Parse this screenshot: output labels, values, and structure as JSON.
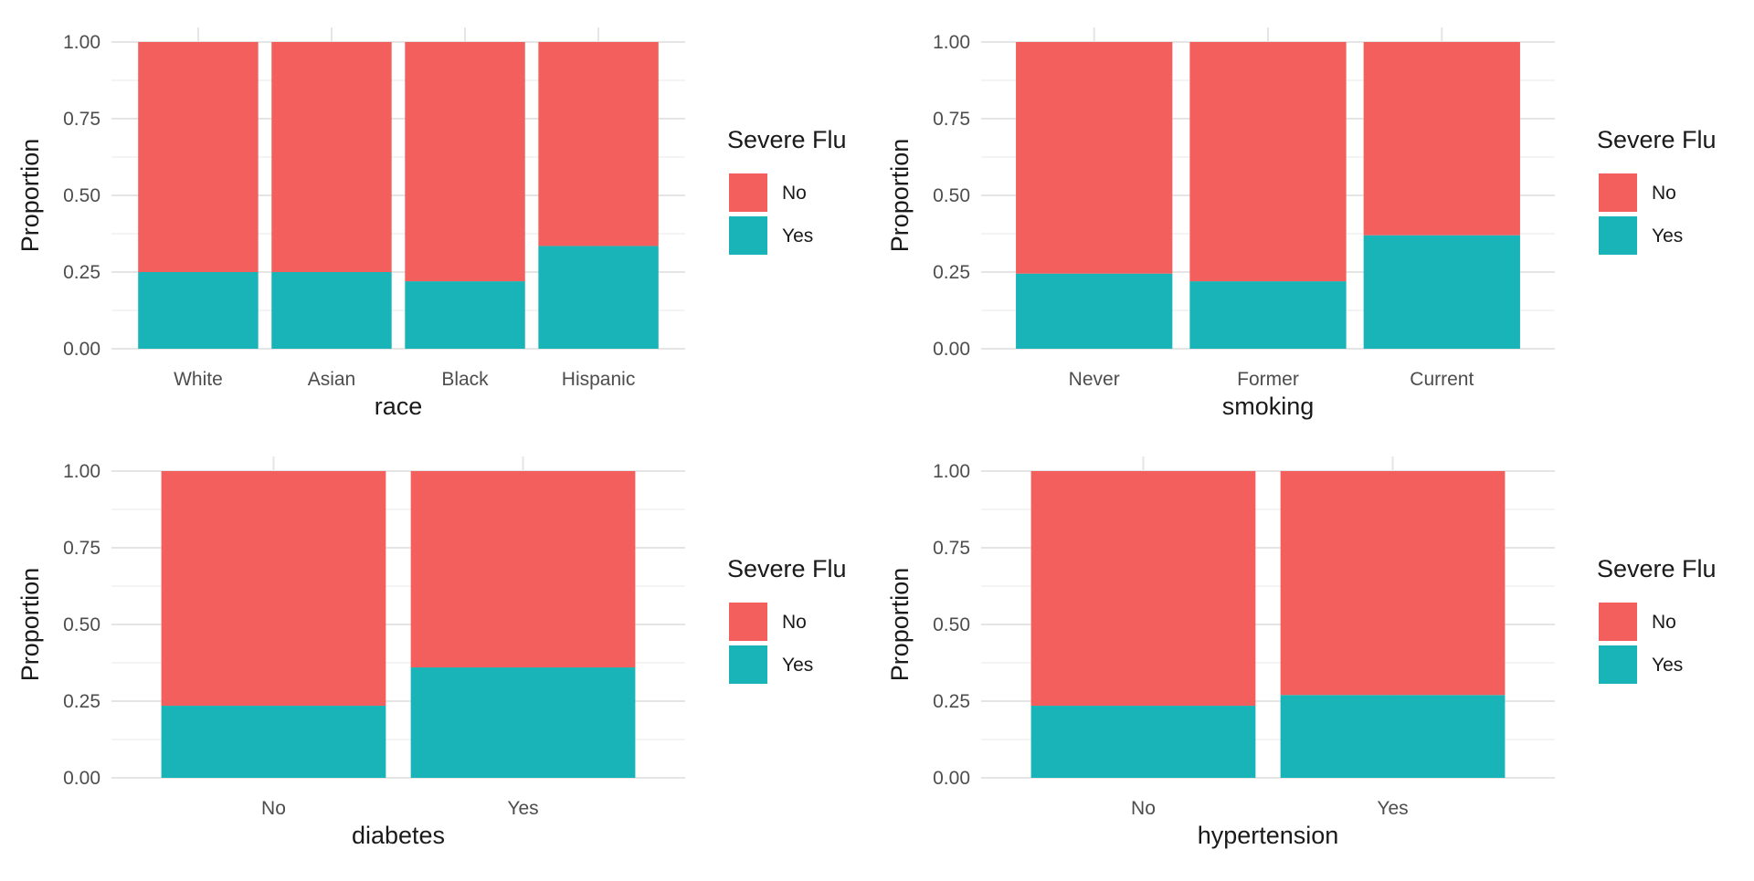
{
  "colors": {
    "No": "#F35F5C",
    "Yes": "#19B4B7",
    "grid": "#e5e5e5"
  },
  "chart_data": [
    {
      "type": "bar",
      "stacked": true,
      "categories": [
        "White",
        "Asian",
        "Black",
        "Hispanic"
      ],
      "series": [
        {
          "name": "No",
          "values": [
            0.75,
            0.75,
            0.78,
            0.665
          ]
        },
        {
          "name": "Yes",
          "values": [
            0.25,
            0.25,
            0.22,
            0.335
          ]
        }
      ],
      "xlabel": "race",
      "ylabel": "Proportion",
      "ylim": [
        0,
        1
      ],
      "yticks": [
        "0.00",
        "0.25",
        "0.50",
        "0.75",
        "1.00"
      ],
      "legend_title": "Severe Flu",
      "legend": [
        "No",
        "Yes"
      ],
      "legend_placement": "right",
      "grid": true
    },
    {
      "type": "bar",
      "stacked": true,
      "categories": [
        "Never",
        "Former",
        "Current"
      ],
      "series": [
        {
          "name": "No",
          "values": [
            0.755,
            0.78,
            0.63
          ]
        },
        {
          "name": "Yes",
          "values": [
            0.245,
            0.22,
            0.37
          ]
        }
      ],
      "xlabel": "smoking",
      "ylabel": "Proportion",
      "ylim": [
        0,
        1
      ],
      "yticks": [
        "0.00",
        "0.25",
        "0.50",
        "0.75",
        "1.00"
      ],
      "legend_title": "Severe Flu",
      "legend": [
        "No",
        "Yes"
      ],
      "legend_placement": "right",
      "grid": true
    },
    {
      "type": "bar",
      "stacked": true,
      "categories": [
        "No",
        "Yes"
      ],
      "series": [
        {
          "name": "No",
          "values": [
            0.765,
            0.64
          ]
        },
        {
          "name": "Yes",
          "values": [
            0.235,
            0.36
          ]
        }
      ],
      "xlabel": "diabetes",
      "ylabel": "Proportion",
      "ylim": [
        0,
        1
      ],
      "yticks": [
        "0.00",
        "0.25",
        "0.50",
        "0.75",
        "1.00"
      ],
      "legend_title": "Severe Flu",
      "legend": [
        "No",
        "Yes"
      ],
      "legend_placement": "right",
      "grid": true
    },
    {
      "type": "bar",
      "stacked": true,
      "categories": [
        "No",
        "Yes"
      ],
      "series": [
        {
          "name": "No",
          "values": [
            0.765,
            0.73
          ]
        },
        {
          "name": "Yes",
          "values": [
            0.235,
            0.27
          ]
        }
      ],
      "xlabel": "hypertension",
      "ylabel": "Proportion",
      "ylim": [
        0,
        1
      ],
      "yticks": [
        "0.00",
        "0.25",
        "0.50",
        "0.75",
        "1.00"
      ],
      "legend_title": "Severe Flu",
      "legend": [
        "No",
        "Yes"
      ],
      "legend_placement": "right",
      "grid": true
    }
  ]
}
